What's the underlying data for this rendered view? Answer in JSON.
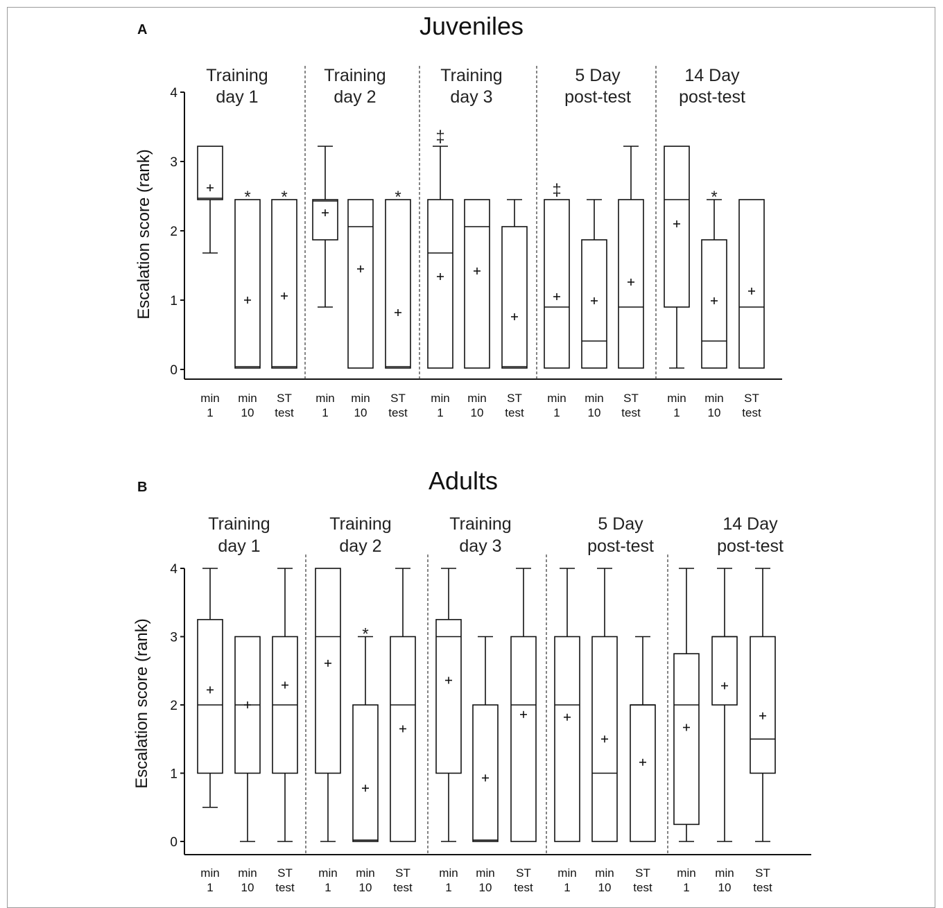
{
  "chart_data": [
    {
      "type": "box",
      "panel_label": "A",
      "title": "Juveniles",
      "ylabel": "Escalation score (rank)",
      "ylim": [
        0,
        4
      ],
      "yticks": [
        "0",
        "1",
        "2",
        "3",
        "4"
      ],
      "groups": [
        {
          "label_line1": "Training",
          "label_line2": "day 1",
          "boxes": [
            {
              "cat1": "min",
              "cat2": "1",
              "whislo": 1.68,
              "q1": 2.45,
              "med": 2.47,
              "q3": 3.22,
              "whishi": 3.22,
              "mean": 2.62,
              "annot": ""
            },
            {
              "cat1": "min",
              "cat2": "10",
              "whislo": 0.02,
              "q1": 0.02,
              "med": 0.04,
              "q3": 2.45,
              "whishi": 2.45,
              "mean": 1.0,
              "annot": "*"
            },
            {
              "cat1": "ST",
              "cat2": "test",
              "whislo": 0.02,
              "q1": 0.02,
              "med": 0.04,
              "q3": 2.45,
              "whishi": 2.45,
              "mean": 1.06,
              "annot": "*"
            }
          ]
        },
        {
          "label_line1": "Training",
          "label_line2": "day 2",
          "boxes": [
            {
              "cat1": "min",
              "cat2": "1",
              "whislo": 0.9,
              "q1": 1.87,
              "med": 2.43,
              "q3": 2.45,
              "whishi": 3.22,
              "mean": 2.26,
              "annot": ""
            },
            {
              "cat1": "min",
              "cat2": "10",
              "whislo": 0.02,
              "q1": 0.02,
              "med": 2.06,
              "q3": 2.45,
              "whishi": 2.45,
              "mean": 1.45,
              "annot": ""
            },
            {
              "cat1": "ST",
              "cat2": "test",
              "whislo": 0.02,
              "q1": 0.02,
              "med": 0.04,
              "q3": 2.45,
              "whishi": 2.45,
              "mean": 0.82,
              "annot": "*"
            }
          ]
        },
        {
          "label_line1": "Training",
          "label_line2": "day 3",
          "boxes": [
            {
              "cat1": "min",
              "cat2": "1",
              "whislo": 0.02,
              "q1": 0.02,
              "med": 1.68,
              "q3": 2.45,
              "whishi": 3.22,
              "mean": 1.34,
              "annot": "‡"
            },
            {
              "cat1": "min",
              "cat2": "10",
              "whislo": 0.02,
              "q1": 0.02,
              "med": 2.06,
              "q3": 2.45,
              "whishi": 2.45,
              "mean": 1.42,
              "annot": ""
            },
            {
              "cat1": "ST",
              "cat2": "test",
              "whislo": 0.02,
              "q1": 0.02,
              "med": 0.04,
              "q3": 2.06,
              "whishi": 2.45,
              "mean": 0.76,
              "annot": ""
            }
          ]
        },
        {
          "label_line1": "5 Day",
          "label_line2": "post-test",
          "boxes": [
            {
              "cat1": "min",
              "cat2": "1",
              "whislo": 0.02,
              "q1": 0.02,
              "med": 0.9,
              "q3": 2.45,
              "whishi": 2.45,
              "mean": 1.05,
              "annot": "‡"
            },
            {
              "cat1": "min",
              "cat2": "10",
              "whislo": 0.02,
              "q1": 0.02,
              "med": 0.41,
              "q3": 1.87,
              "whishi": 2.45,
              "mean": 0.99,
              "annot": ""
            },
            {
              "cat1": "ST",
              "cat2": "test",
              "whislo": 0.02,
              "q1": 0.02,
              "med": 0.9,
              "q3": 2.45,
              "whishi": 3.22,
              "mean": 1.26,
              "annot": ""
            }
          ]
        },
        {
          "label_line1": "14 Day",
          "label_line2": "post-test",
          "boxes": [
            {
              "cat1": "min",
              "cat2": "1",
              "whislo": 0.02,
              "q1": 0.9,
              "med": 2.45,
              "q3": 3.22,
              "whishi": 3.22,
              "mean": 2.1,
              "annot": ""
            },
            {
              "cat1": "min",
              "cat2": "10",
              "whislo": 0.02,
              "q1": 0.02,
              "med": 0.41,
              "q3": 1.87,
              "whishi": 2.45,
              "mean": 0.99,
              "annot": "*"
            },
            {
              "cat1": "ST",
              "cat2": "test",
              "whislo": 0.02,
              "q1": 0.02,
              "med": 0.9,
              "q3": 2.45,
              "whishi": 2.45,
              "mean": 1.13,
              "annot": ""
            }
          ]
        }
      ]
    },
    {
      "type": "box",
      "panel_label": "B",
      "title": "Adults",
      "ylabel": "Escalation score (rank)",
      "ylim": [
        0,
        4
      ],
      "yticks": [
        "0",
        "1",
        "2",
        "3",
        "4"
      ],
      "groups": [
        {
          "label_line1": "Training",
          "label_line2": "day 1",
          "boxes": [
            {
              "cat1": "min",
              "cat2": "1",
              "whislo": 0.5,
              "q1": 1.0,
              "med": 2.0,
              "q3": 3.25,
              "whishi": 4.0,
              "mean": 2.22,
              "annot": ""
            },
            {
              "cat1": "min",
              "cat2": "10",
              "whislo": 0.0,
              "q1": 1.0,
              "med": 2.0,
              "q3": 3.0,
              "whishi": 3.0,
              "mean": 2.0,
              "annot": ""
            },
            {
              "cat1": "ST",
              "cat2": "test",
              "whislo": 0.0,
              "q1": 1.0,
              "med": 2.0,
              "q3": 3.0,
              "whishi": 4.0,
              "mean": 2.29,
              "annot": ""
            }
          ]
        },
        {
          "label_line1": "Training",
          "label_line2": "day 2",
          "boxes": [
            {
              "cat1": "min",
              "cat2": "1",
              "whislo": 0.0,
              "q1": 1.0,
              "med": 3.0,
              "q3": 4.0,
              "whishi": 4.0,
              "mean": 2.61,
              "annot": ""
            },
            {
              "cat1": "min",
              "cat2": "10",
              "whislo": 0.0,
              "q1": 0.0,
              "med": 0.02,
              "q3": 2.0,
              "whishi": 3.0,
              "mean": 0.78,
              "annot": "*"
            },
            {
              "cat1": "ST",
              "cat2": "test",
              "whislo": 0.0,
              "q1": 0.0,
              "med": 2.0,
              "q3": 3.0,
              "whishi": 4.0,
              "mean": 1.65,
              "annot": ""
            }
          ]
        },
        {
          "label_line1": "Training",
          "label_line2": "day 3",
          "boxes": [
            {
              "cat1": "min",
              "cat2": "1",
              "whislo": 0.0,
              "q1": 1.0,
              "med": 3.0,
              "q3": 3.25,
              "whishi": 4.0,
              "mean": 2.36,
              "annot": ""
            },
            {
              "cat1": "min",
              "cat2": "10",
              "whislo": 0.0,
              "q1": 0.0,
              "med": 0.02,
              "q3": 2.0,
              "whishi": 3.0,
              "mean": 0.93,
              "annot": ""
            },
            {
              "cat1": "ST",
              "cat2": "test",
              "whislo": 0.0,
              "q1": 0.0,
              "med": 2.0,
              "q3": 3.0,
              "whishi": 4.0,
              "mean": 1.86,
              "annot": ""
            }
          ]
        },
        {
          "label_line1": "5 Day",
          "label_line2": "post-test",
          "boxes": [
            {
              "cat1": "min",
              "cat2": "1",
              "whislo": 0.0,
              "q1": 0.0,
              "med": 2.0,
              "q3": 3.0,
              "whishi": 4.0,
              "mean": 1.82,
              "annot": ""
            },
            {
              "cat1": "min",
              "cat2": "10",
              "whislo": 0.0,
              "q1": 0.0,
              "med": 1.0,
              "q3": 3.0,
              "whishi": 4.0,
              "mean": 1.5,
              "annot": ""
            },
            {
              "cat1": "ST",
              "cat2": "test",
              "whislo": 0.0,
              "q1": 0.0,
              "med": 2.0,
              "q3": 2.0,
              "whishi": 3.0,
              "mean": 1.16,
              "annot": ""
            }
          ]
        },
        {
          "label_line1": "14 Day",
          "label_line2": "post-test",
          "boxes": [
            {
              "cat1": "min",
              "cat2": "1",
              "whislo": 0.0,
              "q1": 0.25,
              "med": 2.0,
              "q3": 2.75,
              "whishi": 4.0,
              "mean": 1.67,
              "annot": ""
            },
            {
              "cat1": "min",
              "cat2": "10",
              "whislo": 0.0,
              "q1": 2.0,
              "med": 3.0,
              "q3": 3.0,
              "whishi": 4.0,
              "mean": 2.28,
              "annot": ""
            },
            {
              "cat1": "ST",
              "cat2": "test",
              "whislo": 0.0,
              "q1": 1.0,
              "med": 1.5,
              "q3": 3.0,
              "whishi": 4.0,
              "mean": 1.84,
              "annot": ""
            }
          ]
        }
      ]
    }
  ]
}
